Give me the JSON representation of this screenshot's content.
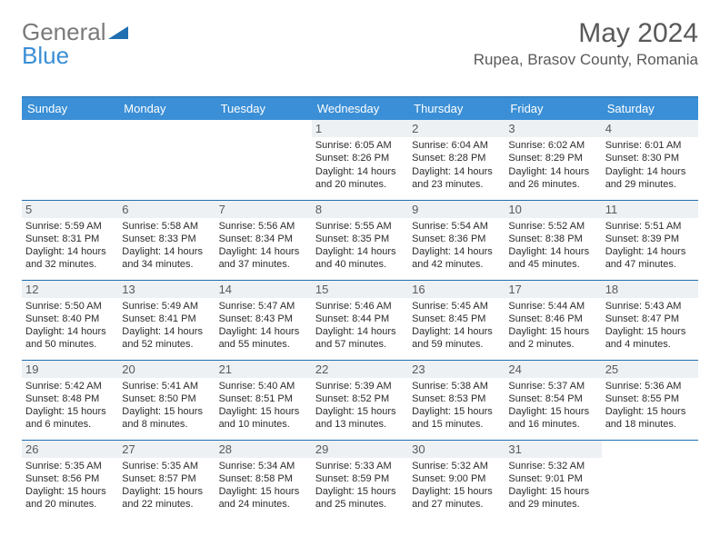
{
  "brand": {
    "part1": "General",
    "part2": "Blue"
  },
  "title": {
    "month": "May 2024",
    "location": "Rupea, Brasov County, Romania"
  },
  "dayHeaders": [
    "Sunday",
    "Monday",
    "Tuesday",
    "Wednesday",
    "Thursday",
    "Friday",
    "Saturday"
  ],
  "colors": {
    "header_bg": "#3a8fd6",
    "header_fg": "#ffffff",
    "rule": "#1f6fb0",
    "text": "#2b2b2b",
    "muted": "#595959",
    "daynum_bg": "#eef1f4",
    "page_bg": "#ffffff"
  },
  "fonts": {
    "title_size": 30,
    "location_size": 17,
    "th_size": 13,
    "daynum_size": 13,
    "cell_size": 11
  },
  "weeks": [
    [
      null,
      null,
      null,
      {
        "n": "1",
        "sr": "6:05 AM",
        "ss": "8:26 PM",
        "dl": "14 hours and 20 minutes."
      },
      {
        "n": "2",
        "sr": "6:04 AM",
        "ss": "8:28 PM",
        "dl": "14 hours and 23 minutes."
      },
      {
        "n": "3",
        "sr": "6:02 AM",
        "ss": "8:29 PM",
        "dl": "14 hours and 26 minutes."
      },
      {
        "n": "4",
        "sr": "6:01 AM",
        "ss": "8:30 PM",
        "dl": "14 hours and 29 minutes."
      }
    ],
    [
      {
        "n": "5",
        "sr": "5:59 AM",
        "ss": "8:31 PM",
        "dl": "14 hours and 32 minutes."
      },
      {
        "n": "6",
        "sr": "5:58 AM",
        "ss": "8:33 PM",
        "dl": "14 hours and 34 minutes."
      },
      {
        "n": "7",
        "sr": "5:56 AM",
        "ss": "8:34 PM",
        "dl": "14 hours and 37 minutes."
      },
      {
        "n": "8",
        "sr": "5:55 AM",
        "ss": "8:35 PM",
        "dl": "14 hours and 40 minutes."
      },
      {
        "n": "9",
        "sr": "5:54 AM",
        "ss": "8:36 PM",
        "dl": "14 hours and 42 minutes."
      },
      {
        "n": "10",
        "sr": "5:52 AM",
        "ss": "8:38 PM",
        "dl": "14 hours and 45 minutes."
      },
      {
        "n": "11",
        "sr": "5:51 AM",
        "ss": "8:39 PM",
        "dl": "14 hours and 47 minutes."
      }
    ],
    [
      {
        "n": "12",
        "sr": "5:50 AM",
        "ss": "8:40 PM",
        "dl": "14 hours and 50 minutes."
      },
      {
        "n": "13",
        "sr": "5:49 AM",
        "ss": "8:41 PM",
        "dl": "14 hours and 52 minutes."
      },
      {
        "n": "14",
        "sr": "5:47 AM",
        "ss": "8:43 PM",
        "dl": "14 hours and 55 minutes."
      },
      {
        "n": "15",
        "sr": "5:46 AM",
        "ss": "8:44 PM",
        "dl": "14 hours and 57 minutes."
      },
      {
        "n": "16",
        "sr": "5:45 AM",
        "ss": "8:45 PM",
        "dl": "14 hours and 59 minutes."
      },
      {
        "n": "17",
        "sr": "5:44 AM",
        "ss": "8:46 PM",
        "dl": "15 hours and 2 minutes."
      },
      {
        "n": "18",
        "sr": "5:43 AM",
        "ss": "8:47 PM",
        "dl": "15 hours and 4 minutes."
      }
    ],
    [
      {
        "n": "19",
        "sr": "5:42 AM",
        "ss": "8:48 PM",
        "dl": "15 hours and 6 minutes."
      },
      {
        "n": "20",
        "sr": "5:41 AM",
        "ss": "8:50 PM",
        "dl": "15 hours and 8 minutes."
      },
      {
        "n": "21",
        "sr": "5:40 AM",
        "ss": "8:51 PM",
        "dl": "15 hours and 10 minutes."
      },
      {
        "n": "22",
        "sr": "5:39 AM",
        "ss": "8:52 PM",
        "dl": "15 hours and 13 minutes."
      },
      {
        "n": "23",
        "sr": "5:38 AM",
        "ss": "8:53 PM",
        "dl": "15 hours and 15 minutes."
      },
      {
        "n": "24",
        "sr": "5:37 AM",
        "ss": "8:54 PM",
        "dl": "15 hours and 16 minutes."
      },
      {
        "n": "25",
        "sr": "5:36 AM",
        "ss": "8:55 PM",
        "dl": "15 hours and 18 minutes."
      }
    ],
    [
      {
        "n": "26",
        "sr": "5:35 AM",
        "ss": "8:56 PM",
        "dl": "15 hours and 20 minutes."
      },
      {
        "n": "27",
        "sr": "5:35 AM",
        "ss": "8:57 PM",
        "dl": "15 hours and 22 minutes."
      },
      {
        "n": "28",
        "sr": "5:34 AM",
        "ss": "8:58 PM",
        "dl": "15 hours and 24 minutes."
      },
      {
        "n": "29",
        "sr": "5:33 AM",
        "ss": "8:59 PM",
        "dl": "15 hours and 25 minutes."
      },
      {
        "n": "30",
        "sr": "5:32 AM",
        "ss": "9:00 PM",
        "dl": "15 hours and 27 minutes."
      },
      {
        "n": "31",
        "sr": "5:32 AM",
        "ss": "9:01 PM",
        "dl": "15 hours and 29 minutes."
      },
      null
    ]
  ]
}
